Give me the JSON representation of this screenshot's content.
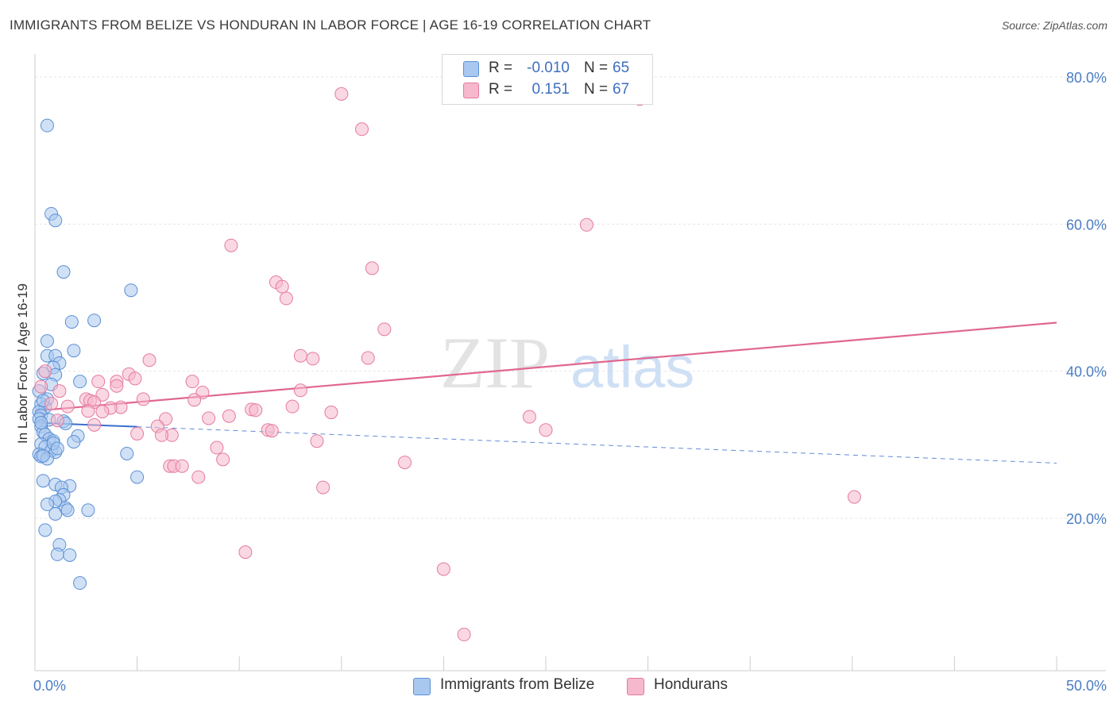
{
  "title": "IMMIGRANTS FROM BELIZE VS HONDURAN IN LABOR FORCE | AGE 16-19 CORRELATION CHART",
  "source": "Source: ZipAtlas.com",
  "watermark": {
    "zip": "ZIP",
    "atlas": "atlas"
  },
  "legend": {
    "rows": [
      {
        "r_label": "R =",
        "r_value": "-0.010",
        "n_label": "N =",
        "n_value": "65"
      },
      {
        "r_label": "R =",
        "r_value": "0.151",
        "n_label": "N =",
        "n_value": "67"
      }
    ]
  },
  "colors": {
    "blue_fill": "#a9c8ef",
    "blue_stroke": "#5b8fd6",
    "blue_line": "#3a6fcc",
    "pink_fill": "#f6b8cc",
    "pink_stroke": "#e57aa0",
    "pink_line": "#e0678f",
    "grid": "#e6e6e6",
    "axis_text": "#4a7cc4"
  },
  "chart_data": {
    "type": "scatter",
    "title": "IMMIGRANTS FROM BELIZE VS HONDURAN IN LABOR FORCE | AGE 16-19 CORRELATION CHART",
    "xlabel": "",
    "ylabel": "In Labor Force | Age 16-19",
    "xlim": [
      0,
      50
    ],
    "ylim": [
      0,
      80
    ],
    "x_tick_labels": [
      "0.0%",
      "50.0%"
    ],
    "y_ticks": [
      20,
      40,
      60,
      80
    ],
    "y_tick_labels": [
      "20.0%",
      "40.0%",
      "60.0%",
      "80.0%"
    ],
    "legend_position": "bottom",
    "series": [
      {
        "name": "Immigrants from Belize",
        "r": -0.01,
        "n": 65,
        "trend": {
          "x0": 0,
          "y0": 33.0,
          "x1": 50,
          "y1": 27.5,
          "solid_until": 5
        },
        "points": [
          [
            0.6,
            73.4
          ],
          [
            0.8,
            61.4
          ],
          [
            1.0,
            60.5
          ],
          [
            1.4,
            53.5
          ],
          [
            4.7,
            51.0
          ],
          [
            1.8,
            46.7
          ],
          [
            2.9,
            46.9
          ],
          [
            0.6,
            44.1
          ],
          [
            0.6,
            42.1
          ],
          [
            1.0,
            42.1
          ],
          [
            1.9,
            42.8
          ],
          [
            1.2,
            41.1
          ],
          [
            0.9,
            40.5
          ],
          [
            1.0,
            39.5
          ],
          [
            0.4,
            39.7
          ],
          [
            2.2,
            38.6
          ],
          [
            0.8,
            38.2
          ],
          [
            0.2,
            37.3
          ],
          [
            0.6,
            36.2
          ],
          [
            0.3,
            35.5
          ],
          [
            0.5,
            35.1
          ],
          [
            0.2,
            34.5
          ],
          [
            0.3,
            34.0
          ],
          [
            0.2,
            33.5
          ],
          [
            0.7,
            33.4
          ],
          [
            1.4,
            33.2
          ],
          [
            1.5,
            32.9
          ],
          [
            0.3,
            32.5
          ],
          [
            0.4,
            31.7
          ],
          [
            0.5,
            31.4
          ],
          [
            2.1,
            31.2
          ],
          [
            0.7,
            30.8
          ],
          [
            0.9,
            30.5
          ],
          [
            1.9,
            30.4
          ],
          [
            0.3,
            30.1
          ],
          [
            0.5,
            29.7
          ],
          [
            0.8,
            29.2
          ],
          [
            1.0,
            29.0
          ],
          [
            0.2,
            28.7
          ],
          [
            0.3,
            28.4
          ],
          [
            0.6,
            28.1
          ],
          [
            0.4,
            28.5
          ],
          [
            4.5,
            28.8
          ],
          [
            5.0,
            25.6
          ],
          [
            0.4,
            25.1
          ],
          [
            1.0,
            24.6
          ],
          [
            1.7,
            24.4
          ],
          [
            1.3,
            24.2
          ],
          [
            1.4,
            23.2
          ],
          [
            1.2,
            22.5
          ],
          [
            1.0,
            22.3
          ],
          [
            0.6,
            21.9
          ],
          [
            1.5,
            21.4
          ],
          [
            1.6,
            21.1
          ],
          [
            2.6,
            21.1
          ],
          [
            1.0,
            20.6
          ],
          [
            0.5,
            18.4
          ],
          [
            1.2,
            16.4
          ],
          [
            1.1,
            15.1
          ],
          [
            1.7,
            15.0
          ],
          [
            2.2,
            11.2
          ],
          [
            0.3,
            33.0
          ],
          [
            0.4,
            36.0
          ],
          [
            0.9,
            30.2
          ],
          [
            1.1,
            29.5
          ]
        ]
      },
      {
        "name": "Hondurans",
        "r": 0.151,
        "n": 67,
        "trend": {
          "x0": 0,
          "y0": 34.6,
          "x1": 50,
          "y1": 46.6
        },
        "points": [
          [
            15.0,
            77.7
          ],
          [
            29.6,
            77.0
          ],
          [
            16.0,
            72.9
          ],
          [
            27.0,
            59.9
          ],
          [
            9.6,
            57.1
          ],
          [
            16.5,
            54.0
          ],
          [
            11.8,
            52.1
          ],
          [
            12.1,
            51.5
          ],
          [
            12.3,
            49.9
          ],
          [
            17.1,
            45.7
          ],
          [
            13.0,
            42.1
          ],
          [
            13.6,
            41.7
          ],
          [
            16.3,
            41.8
          ],
          [
            5.6,
            41.5
          ],
          [
            0.5,
            40.0
          ],
          [
            4.6,
            39.6
          ],
          [
            4.9,
            39.0
          ],
          [
            7.7,
            38.6
          ],
          [
            4.0,
            38.6
          ],
          [
            3.1,
            38.6
          ],
          [
            0.3,
            37.9
          ],
          [
            1.2,
            37.3
          ],
          [
            8.2,
            37.1
          ],
          [
            13.0,
            37.4
          ],
          [
            3.3,
            36.8
          ],
          [
            2.5,
            36.2
          ],
          [
            2.7,
            36.0
          ],
          [
            2.9,
            35.8
          ],
          [
            5.3,
            36.2
          ],
          [
            7.8,
            36.1
          ],
          [
            0.8,
            35.6
          ],
          [
            1.6,
            35.2
          ],
          [
            12.6,
            35.2
          ],
          [
            4.2,
            35.1
          ],
          [
            3.7,
            35.0
          ],
          [
            3.3,
            34.5
          ],
          [
            10.6,
            34.8
          ],
          [
            10.8,
            34.7
          ],
          [
            14.5,
            34.4
          ],
          [
            9.5,
            33.9
          ],
          [
            8.5,
            33.6
          ],
          [
            6.4,
            33.5
          ],
          [
            24.2,
            33.8
          ],
          [
            1.1,
            33.3
          ],
          [
            2.9,
            32.7
          ],
          [
            6.0,
            32.5
          ],
          [
            11.4,
            32.0
          ],
          [
            11.6,
            31.9
          ],
          [
            25.0,
            32.0
          ],
          [
            5.0,
            31.5
          ],
          [
            6.7,
            31.3
          ],
          [
            6.2,
            31.3
          ],
          [
            13.8,
            30.5
          ],
          [
            8.9,
            29.6
          ],
          [
            9.2,
            28.0
          ],
          [
            18.1,
            27.6
          ],
          [
            6.6,
            27.1
          ],
          [
            6.8,
            27.1
          ],
          [
            7.2,
            27.1
          ],
          [
            8.0,
            25.6
          ],
          [
            14.1,
            24.2
          ],
          [
            40.1,
            22.9
          ],
          [
            10.3,
            15.4
          ],
          [
            20.0,
            13.1
          ],
          [
            21.0,
            4.2
          ],
          [
            4.0,
            38.0
          ],
          [
            2.6,
            34.6
          ]
        ]
      }
    ]
  },
  "bottom_legend": {
    "items": [
      {
        "label": "Immigrants from Belize"
      },
      {
        "label": "Hondurans"
      }
    ]
  }
}
